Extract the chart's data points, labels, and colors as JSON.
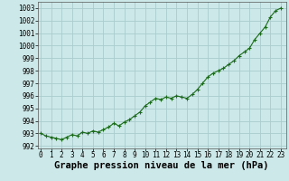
{
  "x": [
    0,
    0.5,
    1,
    1.5,
    2,
    2.5,
    3,
    3.5,
    4,
    4.5,
    5,
    5.5,
    6,
    6.5,
    7,
    7.5,
    8,
    8.5,
    9,
    9.5,
    10,
    10.5,
    11,
    11.5,
    12,
    12.5,
    13,
    13.5,
    14,
    14.5,
    15,
    15.5,
    16,
    16.5,
    17,
    17.5,
    18,
    18.5,
    19,
    19.5,
    20,
    20.5,
    21,
    21.5,
    22,
    22.5,
    23
  ],
  "y": [
    993.0,
    992.8,
    992.7,
    992.6,
    992.5,
    992.7,
    992.9,
    992.8,
    993.1,
    993.0,
    993.2,
    993.1,
    993.3,
    993.5,
    993.8,
    993.6,
    993.9,
    994.1,
    994.4,
    994.7,
    995.2,
    995.5,
    995.8,
    995.7,
    995.9,
    995.8,
    996.0,
    995.9,
    995.8,
    996.1,
    996.5,
    997.0,
    997.5,
    997.8,
    998.0,
    998.2,
    998.5,
    998.8,
    999.2,
    999.5,
    999.8,
    1000.5,
    1001.0,
    1001.5,
    1002.3,
    1002.8,
    1003.0
  ],
  "xlabel": "Graphe pression niveau de la mer (hPa)",
  "xticks": [
    0,
    1,
    2,
    3,
    4,
    5,
    6,
    7,
    8,
    9,
    10,
    11,
    12,
    13,
    14,
    15,
    16,
    17,
    18,
    19,
    20,
    21,
    22,
    23
  ],
  "yticks": [
    992,
    993,
    994,
    995,
    996,
    997,
    998,
    999,
    1000,
    1001,
    1002,
    1003
  ],
  "ylim": [
    991.8,
    1003.5
  ],
  "xlim": [
    -0.3,
    23.5
  ],
  "bg_color": "#cce8e8",
  "grid_color": "#aacccc",
  "line_color": "#1a6b1a",
  "marker_color": "#1a6b1a",
  "tick_label_fontsize": 5.5,
  "xlabel_fontsize": 7.5,
  "xlabel_fontweight": "bold"
}
